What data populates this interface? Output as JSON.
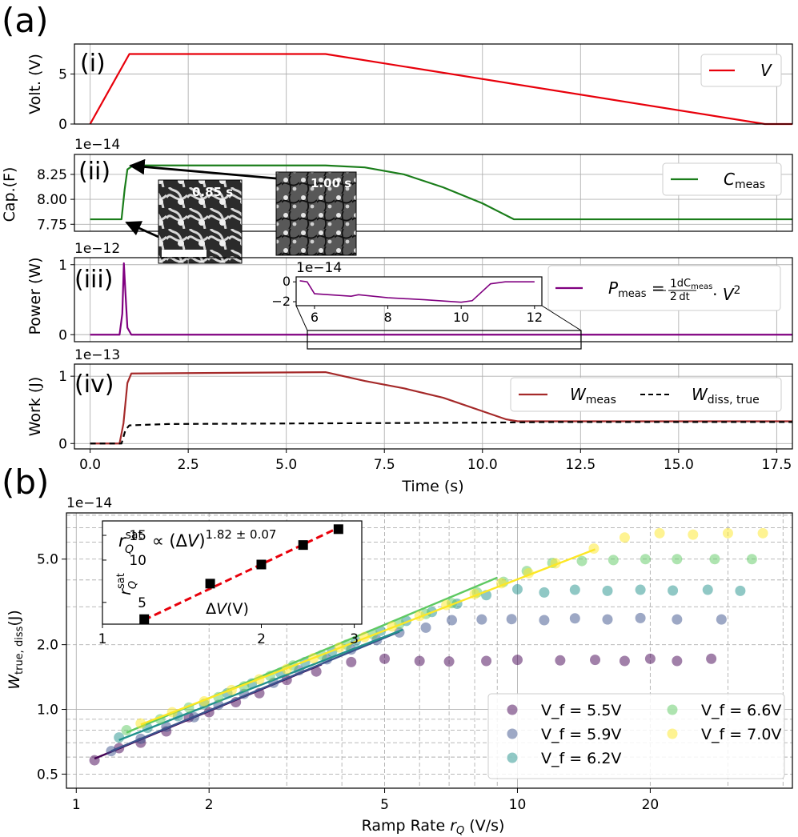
{
  "figure": {
    "panel_a_letter": "(a)",
    "panel_b_letter": "(b)",
    "time_xlabel": "Time (s)",
    "time_ticks": [
      "0.0",
      "2.5",
      "5.0",
      "7.5",
      "10.0",
      "12.5",
      "15.0",
      "17.5"
    ],
    "image_labels": [
      "0.85 s",
      "1.00 s"
    ],
    "colors": {
      "voltage": "#e8000b",
      "capacitance": "#1a7d1a",
      "power": "#800080",
      "work": "#a52a2a",
      "dissipated": "#000000",
      "arrow": "#000000"
    }
  },
  "chart_data": [
    {
      "type": "line",
      "panel": "(i)",
      "ylabel": "Volt. (V)",
      "ylim": [
        0,
        8
      ],
      "xlim": [
        -0.4,
        17.9
      ],
      "yticks": [
        "0",
        "5"
      ],
      "legend": [
        "V"
      ],
      "series": [
        {
          "name": "V",
          "x": [
            0,
            1.0,
            6.0,
            17.2,
            17.9
          ],
          "y": [
            0,
            7.0,
            7.0,
            0,
            0
          ]
        }
      ]
    },
    {
      "type": "line",
      "panel": "(ii)",
      "ylabel": "Cap.(F)",
      "offset": "1e−14",
      "ylim": [
        7.68,
        8.45
      ],
      "yticks": [
        "7.75",
        "8.00",
        "8.25"
      ],
      "legend": [
        "C_meas"
      ],
      "series": [
        {
          "name": "C_meas",
          "x": [
            0,
            0.8,
            0.88,
            0.95,
            1.1,
            6.0,
            7.0,
            8.0,
            9.0,
            9.5,
            10.0,
            10.5,
            10.8,
            11.2,
            17.9
          ],
          "y": [
            7.8,
            7.8,
            8.1,
            8.3,
            8.34,
            8.34,
            8.32,
            8.25,
            8.12,
            8.04,
            7.96,
            7.86,
            7.8,
            7.8,
            7.8
          ]
        }
      ]
    },
    {
      "type": "line",
      "panel": "(iii)",
      "ylabel": "Power (W)",
      "offset": "1e−12",
      "ylim": [
        -0.1,
        1.1
      ],
      "yticks": [
        "0",
        "1"
      ],
      "legend": [
        "P_meas = (1/2)(dC_meas/dt) · V²"
      ],
      "series": [
        {
          "name": "P_meas",
          "x": [
            0,
            0.75,
            0.82,
            0.86,
            0.9,
            0.95,
            1.05,
            17.9
          ],
          "y": [
            0,
            0,
            0.3,
            1.02,
            0.6,
            0.1,
            0,
            0
          ]
        }
      ],
      "inset": {
        "offset": "1e−14",
        "xticks": [
          "6",
          "8",
          "10",
          "12"
        ],
        "yticks": [
          "0",
          "−2"
        ],
        "xlim": [
          5.5,
          12.2
        ],
        "ylim": [
          -2.4,
          0.5
        ],
        "series": [
          {
            "name": "P_meas zoom",
            "x": [
              5.6,
              5.8,
              6.0,
              7.0,
              7.2,
              8.0,
              9.0,
              10.0,
              10.3,
              10.8,
              11.2,
              12.0
            ],
            "y": [
              0.1,
              0.0,
              -1.2,
              -1.45,
              -1.3,
              -1.6,
              -1.8,
              -2.05,
              -1.9,
              -0.2,
              0.0,
              0.0
            ]
          }
        ]
      }
    },
    {
      "type": "line",
      "panel": "(iv)",
      "ylabel": "Work (J)",
      "offset": "1e−13",
      "ylim": [
        -0.08,
        1.18
      ],
      "yticks": [
        "0",
        "1"
      ],
      "legend": [
        "W_meas",
        "W_diss,true"
      ],
      "series": [
        {
          "name": "W_meas",
          "x": [
            0,
            0.75,
            0.85,
            0.95,
            1.05,
            6.0,
            7.0,
            8.0,
            9.0,
            10.0,
            10.6,
            10.9,
            17.9
          ],
          "y": [
            0,
            0,
            0.3,
            0.9,
            1.04,
            1.06,
            0.93,
            0.82,
            0.68,
            0.48,
            0.36,
            0.33,
            0.33
          ]
        },
        {
          "name": "W_diss,true",
          "x": [
            0,
            0.8,
            0.9,
            1.0,
            2.0,
            6.0,
            10.0,
            12.0,
            17.9
          ],
          "y": [
            0,
            0,
            0.2,
            0.27,
            0.29,
            0.3,
            0.31,
            0.32,
            0.32
          ]
        }
      ]
    },
    {
      "type": "scatter",
      "panel": "(b)",
      "xlabel": "Ramp Rate r_Q (V/s)",
      "ylabel": "W_true,diss (J)",
      "offset": "1e−14",
      "xscale": "log",
      "yscale": "log",
      "xlim": [
        0.95,
        42
      ],
      "ylim": [
        0.43,
        8.2
      ],
      "xticks": [
        "1",
        "2",
        "5",
        "10",
        "20"
      ],
      "yticks": [
        "0.5",
        "1.0",
        "2.0",
        "5.0"
      ],
      "legend": [
        "V_f = 5.5V",
        "V_f = 5.9V",
        "V_f = 6.2V",
        "V_f = 6.6V",
        "V_f = 7.0V"
      ],
      "series": [
        {
          "name": "V_f = 5.5V",
          "color": "#440154",
          "x": [
            1.1,
            1.25,
            1.4,
            1.6,
            1.8,
            2.0,
            2.3,
            2.6,
            3.0,
            3.5,
            4.2,
            5.0,
            6.0,
            7.0,
            8.5,
            10.0,
            12.5,
            15.0,
            17.5,
            20.0,
            23.0,
            27.5
          ],
          "y": [
            0.58,
            0.66,
            0.7,
            0.79,
            0.92,
            0.97,
            1.08,
            1.19,
            1.37,
            1.5,
            1.66,
            1.72,
            1.68,
            1.67,
            1.68,
            1.7,
            1.69,
            1.7,
            1.68,
            1.72,
            1.68,
            1.72
          ],
          "fit": {
            "x": [
              1.1,
              3.6
            ],
            "y": [
              0.59,
              1.62
            ]
          }
        },
        {
          "name": "V_f = 5.9V",
          "color": "#3b528b",
          "x": [
            1.2,
            1.4,
            1.6,
            1.85,
            2.1,
            2.4,
            2.8,
            3.2,
            3.7,
            4.2,
            4.8,
            5.4,
            6.2,
            7.1,
            8.3,
            9.7,
            11.5,
            13.5,
            16.0,
            19.0,
            23.0,
            29.0
          ],
          "y": [
            0.64,
            0.73,
            0.83,
            0.92,
            1.05,
            1.18,
            1.33,
            1.52,
            1.71,
            1.9,
            2.1,
            2.28,
            2.4,
            2.6,
            2.62,
            2.63,
            2.6,
            2.65,
            2.62,
            2.66,
            2.62,
            2.62
          ],
          "fit": {
            "x": [
              1.2,
              5.4
            ],
            "y": [
              0.64,
              2.3
            ]
          }
        },
        {
          "name": "V_f = 6.2V",
          "color": "#21918c",
          "x": [
            1.25,
            1.45,
            1.7,
            1.95,
            2.2,
            2.5,
            2.9,
            3.3,
            3.8,
            4.3,
            4.9,
            5.6,
            6.4,
            7.3,
            8.5,
            10.0,
            11.5,
            13.5,
            16.0,
            19.0,
            22.5,
            27.0,
            32.0
          ],
          "y": [
            0.74,
            0.82,
            0.93,
            1.06,
            1.19,
            1.32,
            1.48,
            1.66,
            1.86,
            2.08,
            2.32,
            2.58,
            2.84,
            3.1,
            3.4,
            3.62,
            3.5,
            3.6,
            3.56,
            3.6,
            3.57,
            3.6,
            3.56
          ],
          "fit": {
            "x": [
              1.25,
              5.5
            ],
            "y": [
              0.72,
              2.35
            ]
          }
        },
        {
          "name": "V_f = 6.6V",
          "color": "#5ec962",
          "x": [
            1.3,
            1.55,
            1.8,
            2.1,
            2.4,
            2.75,
            3.1,
            3.6,
            4.1,
            4.7,
            5.4,
            6.2,
            7.1,
            8.1,
            9.3,
            10.5,
            12.0,
            14.0,
            16.5,
            19.5,
            23.0,
            28.0,
            34.0
          ],
          "y": [
            0.8,
            0.9,
            1.02,
            1.14,
            1.28,
            1.43,
            1.6,
            1.79,
            2.0,
            2.24,
            2.5,
            2.78,
            3.12,
            3.5,
            3.92,
            4.4,
            4.8,
            4.9,
            4.95,
            5.0,
            5.0,
            5.0,
            5.0
          ],
          "fit": {
            "x": [
              1.3,
              9.0
            ],
            "y": [
              0.78,
              4.1
            ]
          }
        },
        {
          "name": "V_f = 7.0V",
          "color": "#fde725",
          "x": [
            1.4,
            1.65,
            1.95,
            2.25,
            2.6,
            3.0,
            3.45,
            3.95,
            4.5,
            5.2,
            6.0,
            6.9,
            8.0,
            9.2,
            10.6,
            12.2,
            14.9,
            17.5,
            21.0,
            25.0,
            30.0,
            36.0
          ],
          "y": [
            0.86,
            0.97,
            1.09,
            1.23,
            1.38,
            1.54,
            1.73,
            1.94,
            2.17,
            2.43,
            2.72,
            3.06,
            3.44,
            3.86,
            4.3,
            4.78,
            5.6,
            6.3,
            6.6,
            6.5,
            6.6,
            6.6
          ],
          "fit": {
            "x": [
              1.4,
              15.0
            ],
            "y": [
              0.85,
              5.55
            ]
          }
        }
      ],
      "inset": {
        "type": "scatter",
        "title": "r_Q^sat ∝ (ΔV)^{1.82 ± 0.07}",
        "xlabel": "ΔV(V)",
        "ylabel": "r_Q^sat",
        "xscale": "log",
        "yscale": "log",
        "xlim": [
          1,
          3.1
        ],
        "ylim": [
          3.5,
          19
        ],
        "xticks": [
          "1",
          "2",
          "3"
        ],
        "yticks": [
          "5",
          "10",
          "15"
        ],
        "points": {
          "x": [
            1.2,
            1.6,
            2.0,
            2.4,
            2.8
          ],
          "y": [
            3.8,
            6.8,
            9.3,
            12.8,
            16.6
          ]
        },
        "fit": {
          "x": [
            1.2,
            2.8
          ],
          "y": [
            3.75,
            17.0
          ]
        }
      }
    }
  ]
}
